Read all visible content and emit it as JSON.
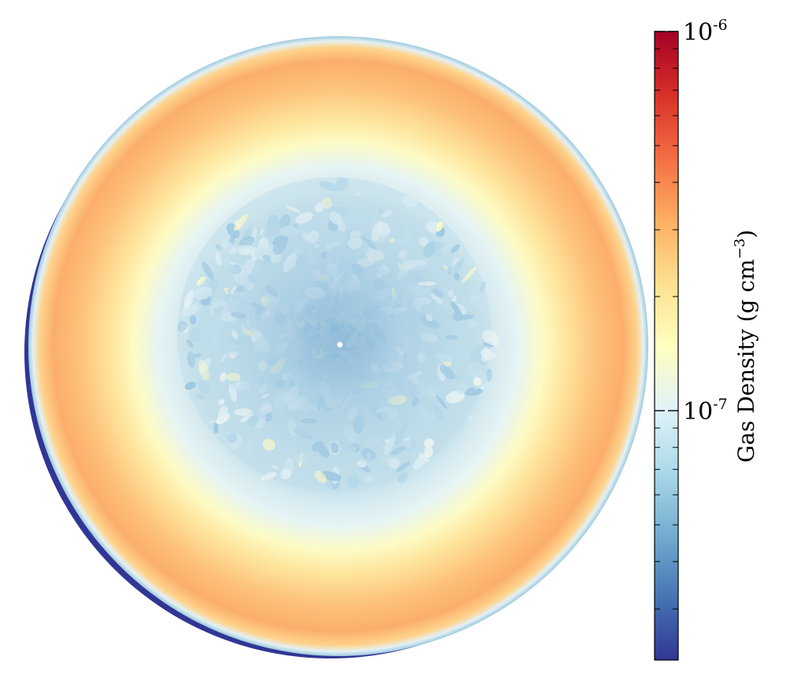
{
  "chart_data": {
    "type": "heatmap",
    "title": "",
    "projection": "circular slice (density map)",
    "colormap": "RdYlBu_r",
    "colorbar": {
      "label": "Gas Density (g cm",
      "label_exponent": "−3",
      "label_close": ")",
      "scale": "log",
      "range": [
        2.2e-08,
        1e-06
      ],
      "ticks": [
        {
          "value": 1e-06,
          "base": "10",
          "exponent": "-6"
        },
        {
          "value": 1e-07,
          "base": "10",
          "exponent": "-7"
        }
      ],
      "placement": "right"
    },
    "regions": [
      {
        "name": "outer rim",
        "density": 2.3e-08,
        "color": "#313695"
      },
      {
        "name": "outer shell",
        "density": 3.2e-07,
        "color": "#f8a95f"
      },
      {
        "name": "transition",
        "density": 1.6e-07,
        "color": "#fefcc0"
      },
      {
        "name": "inner turbulent core",
        "density": 8e-08,
        "color": "#bcdde9"
      }
    ],
    "gradient_stops": [
      "#313695",
      "#4575b4",
      "#74add1",
      "#abd9e9",
      "#e0f3f8",
      "#ffffbf",
      "#fee090",
      "#fdae61",
      "#f46d43",
      "#d73027",
      "#a50026"
    ]
  }
}
